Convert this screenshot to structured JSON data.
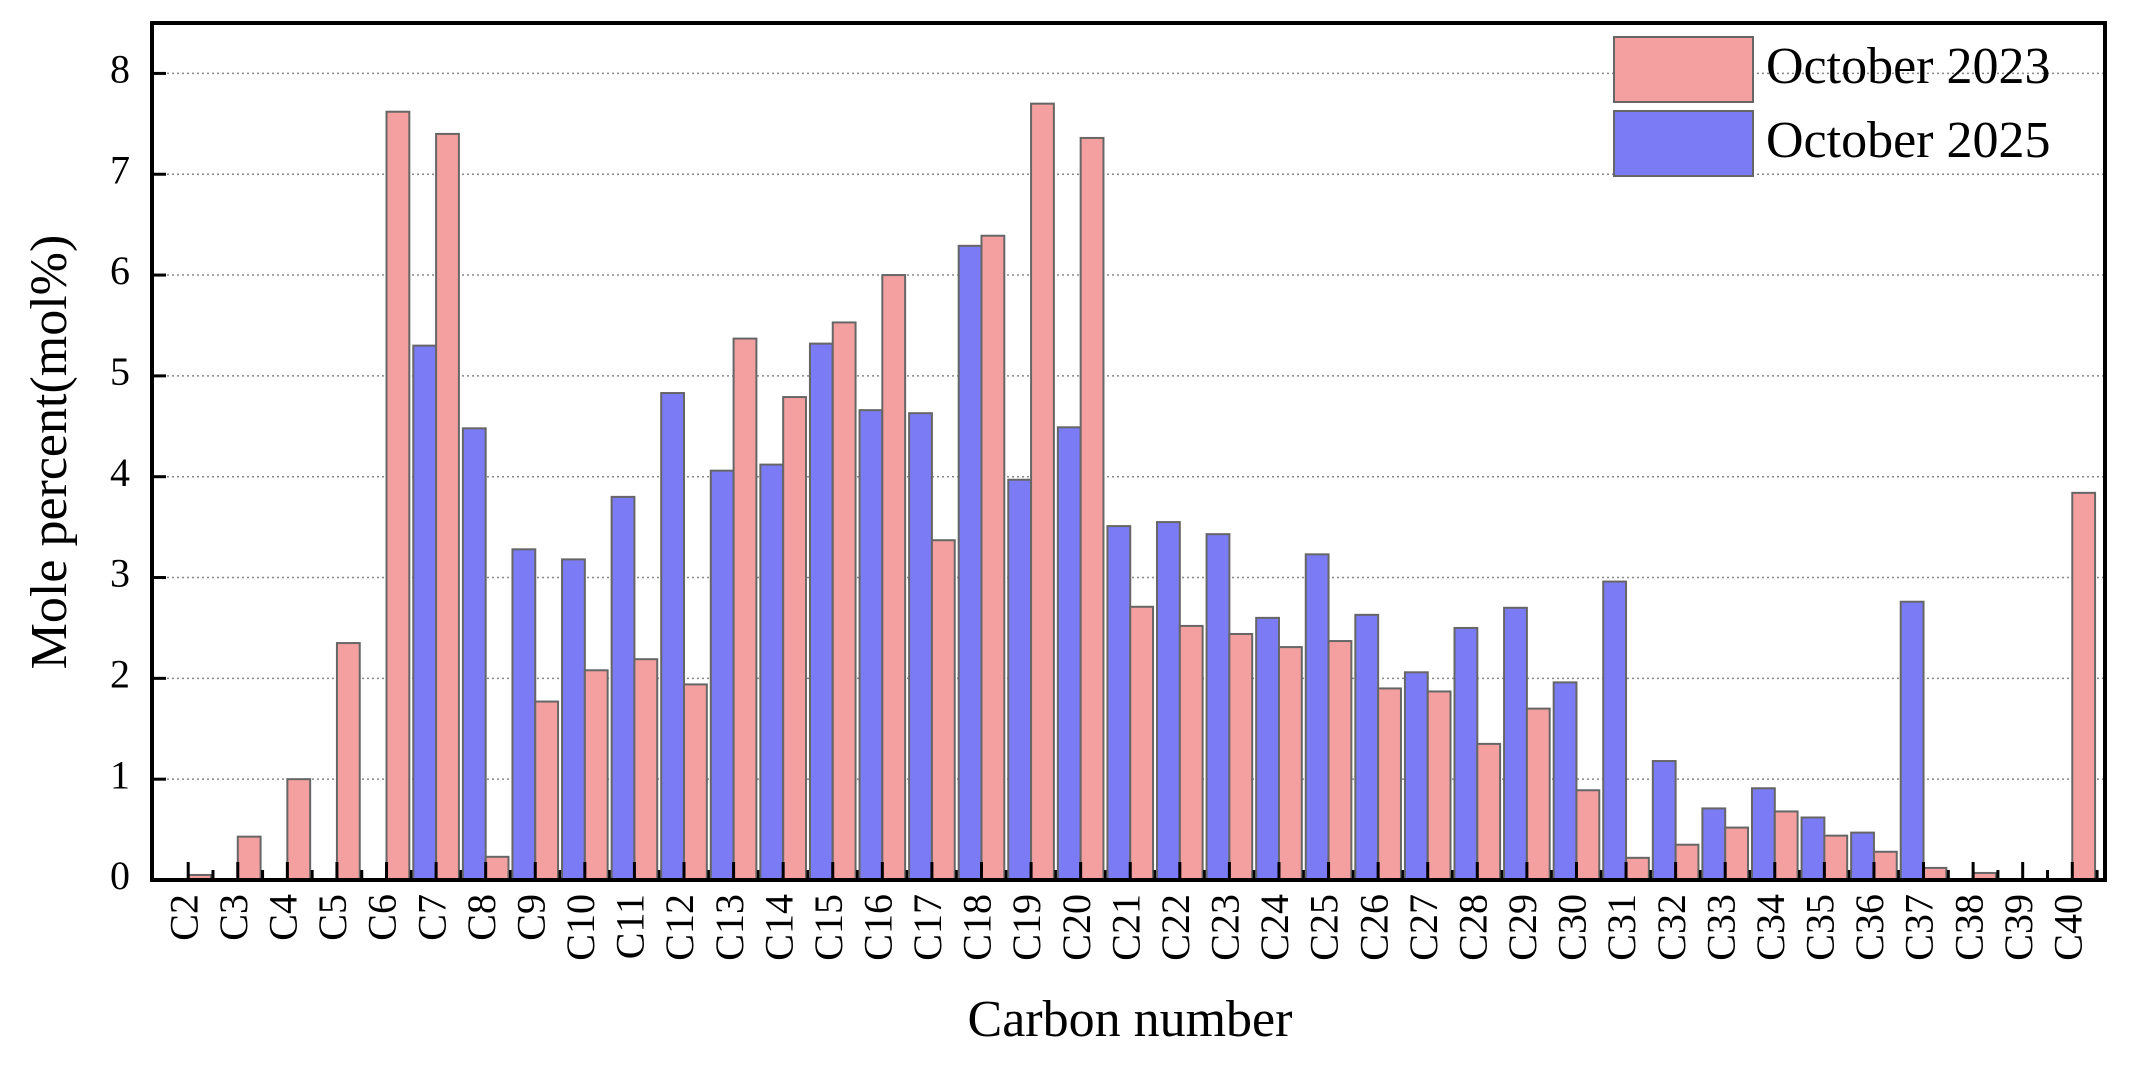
{
  "chart_data": {
    "type": "bar",
    "x_label": "Carbon number",
    "y_label": "Mole percent(mol%)",
    "categories": [
      "C2",
      "C3",
      "C4",
      "C5",
      "C6",
      "C7",
      "C8",
      "C9",
      "C10",
      "C11",
      "C12",
      "C13",
      "C14",
      "C15",
      "C16",
      "C17",
      "C18",
      "C19",
      "C20",
      "C21",
      "C22",
      "C23",
      "C24",
      "C25",
      "C26",
      "C27",
      "C28",
      "C29",
      "C30",
      "C31",
      "C32",
      "C33",
      "C34",
      "C35",
      "C36",
      "C37",
      "C38",
      "C39",
      "C40"
    ],
    "series": [
      {
        "name": "October 2023",
        "color": "#f5a0a0",
        "values": [
          0.05,
          0.43,
          1.0,
          2.35,
          7.62,
          7.4,
          0.23,
          1.77,
          2.08,
          2.19,
          1.94,
          5.37,
          4.79,
          5.53,
          6.0,
          3.37,
          6.39,
          7.7,
          7.36,
          2.71,
          2.52,
          2.44,
          2.31,
          2.37,
          1.9,
          1.87,
          1.35,
          1.7,
          0.89,
          0.22,
          0.35,
          0.52,
          0.68,
          0.44,
          0.28,
          0.12,
          0.07,
          0,
          3.84
        ]
      },
      {
        "name": "October 2025",
        "color": "#7b7bf5",
        "values": [
          0,
          0,
          0,
          0,
          0,
          5.3,
          4.48,
          3.28,
          3.18,
          3.8,
          4.83,
          4.06,
          4.12,
          5.32,
          4.66,
          4.63,
          6.29,
          3.97,
          4.49,
          3.51,
          3.55,
          3.43,
          2.6,
          3.23,
          2.63,
          2.06,
          2.5,
          2.7,
          1.96,
          2.96,
          1.18,
          0.71,
          0.91,
          0.62,
          0.47,
          2.76,
          0,
          0,
          0
        ]
      }
    ],
    "ylim": [
      0,
      8.5
    ],
    "yticks": [
      0,
      1,
      2,
      3,
      4,
      5,
      6,
      7,
      8
    ],
    "grid": true,
    "legend": "upper right"
  }
}
